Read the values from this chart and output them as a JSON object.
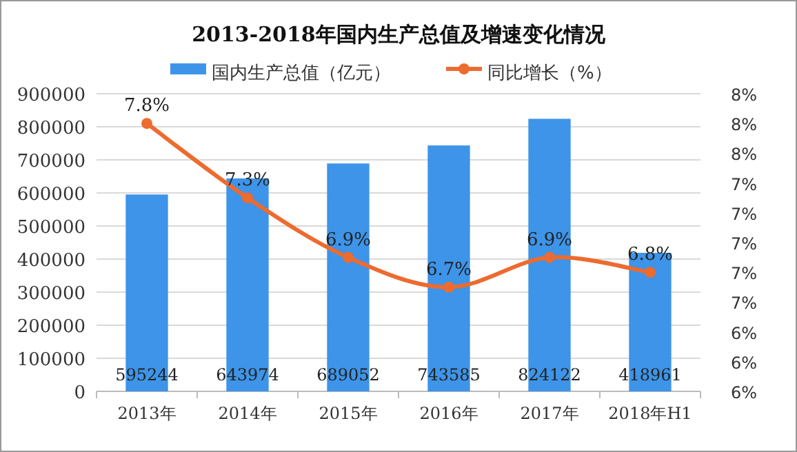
{
  "chart_data": {
    "type": "bar",
    "title": "2013-2018年国内生产总值及增速变化情况",
    "categories": [
      "2013年",
      "2014年",
      "2015年",
      "2016年",
      "2017年",
      "2018年H1"
    ],
    "series": [
      {
        "name": "国内生产总值（亿元）",
        "color": "#3d94e8",
        "values": [
          595244,
          643974,
          689052,
          743585,
          824122,
          418961
        ],
        "value_labels": [
          "595244",
          "643974",
          "689052",
          "743585",
          "824122",
          "418961"
        ]
      },
      {
        "name": "同比增长（%）",
        "type": "line",
        "axis": "y2",
        "color": "#ed6b2f",
        "marker": "circle",
        "values": [
          7.8,
          7.3,
          6.9,
          6.7,
          6.9,
          6.8
        ],
        "value_labels": [
          "7.8%",
          "7.3%",
          "6.9%",
          "6.7%",
          "6.9%",
          "6.8%"
        ]
      }
    ],
    "ylim": [
      0,
      900000
    ],
    "yticks": [
      0,
      100000,
      200000,
      300000,
      400000,
      500000,
      600000,
      700000,
      800000,
      900000
    ],
    "y2lim": [
      6.0,
      8.0
    ],
    "y2ticks": [
      {
        "value": 6.0,
        "label": "6%"
      },
      {
        "value": 6.2,
        "label": "6%"
      },
      {
        "value": 6.4,
        "label": "6%"
      },
      {
        "value": 6.6,
        "label": "7%"
      },
      {
        "value": 6.8,
        "label": "7%"
      },
      {
        "value": 7.0,
        "label": "7%"
      },
      {
        "value": 7.2,
        "label": "7%"
      },
      {
        "value": 7.4,
        "label": "7%"
      },
      {
        "value": 7.6,
        "label": "8%"
      },
      {
        "value": 7.8,
        "label": "8%"
      },
      {
        "value": 8.0,
        "label": "8%"
      }
    ],
    "grid": "y",
    "legend": "top"
  }
}
